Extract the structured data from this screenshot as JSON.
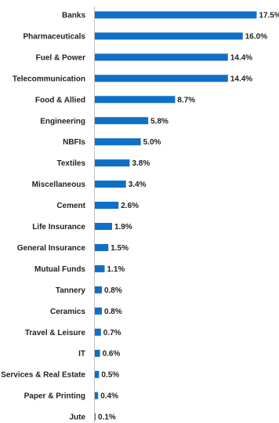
{
  "chart_data": {
    "type": "bar",
    "orientation": "horizontal",
    "categories": [
      "Banks",
      "Pharmaceuticals",
      "Fuel & Power",
      "Telecommunication",
      "Food & Allied",
      "Engineering",
      "NBFIs",
      "Textiles",
      "Miscellaneous",
      "Cement",
      "Life Insurance",
      "General Insurance",
      "Mutual Funds",
      "Tannery",
      "Ceramics",
      "Travel & Leisure",
      "IT",
      "Services & Real Estate",
      "Paper & Printing",
      "Jute"
    ],
    "values": [
      17.5,
      16.0,
      14.4,
      14.4,
      8.7,
      5.8,
      5.0,
      3.8,
      3.4,
      2.6,
      1.9,
      1.5,
      1.1,
      0.8,
      0.8,
      0.7,
      0.6,
      0.5,
      0.4,
      0.1
    ],
    "value_labels": [
      "17.5%",
      "16.0%",
      "14.4%",
      "14.4%",
      "8.7%",
      "5.8%",
      "5.0%",
      "3.8%",
      "3.4%",
      "2.6%",
      "1.9%",
      "1.5%",
      "1.1%",
      "0.8%",
      "0.8%",
      "0.7%",
      "0.6%",
      "0.5%",
      "0.4%",
      "0.1%"
    ],
    "xlim": [
      0,
      17.5
    ],
    "grid": false,
    "legend": "none",
    "bar_color": "#0f6fc6",
    "axis_color": "#bfbfbf"
  }
}
